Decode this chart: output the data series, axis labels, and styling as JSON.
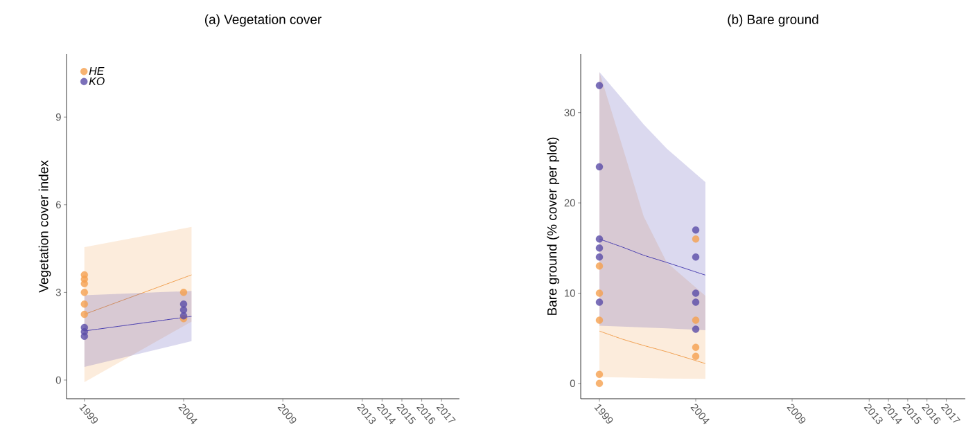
{
  "chart_data": [
    {
      "type": "scatter",
      "title": "(a) Vegetation cover",
      "ylabel": "Vegetation cover index",
      "xlim": [
        1998.1,
        2017.9
      ],
      "xticks": [
        1999,
        2004,
        2009,
        2013,
        2014,
        2015,
        2016,
        2017
      ],
      "ylim": [
        -0.64,
        11.16
      ],
      "yticks": [
        0,
        3,
        6,
        9
      ],
      "grid": false,
      "legend": "top left",
      "series": [
        {
          "type": "line",
          "marker": "none",
          "color": "#f0a050",
          "x": [
            1999,
            2004.4
          ],
          "values": [
            2.25,
            3.6
          ],
          "lower": [
            -0.07,
            2.0
          ],
          "upper": [
            4.55,
            5.24
          ]
        },
        {
          "type": "line",
          "marker": "none",
          "color": "#4a3fb0",
          "x": [
            1999,
            2004.4
          ],
          "values": [
            1.68,
            2.18
          ],
          "lower": [
            0.45,
            1.33
          ],
          "upper": [
            2.9,
            3.05
          ]
        },
        {
          "name": "HE",
          "marker": "circle",
          "color": "#f5a04f",
          "x": [
            1999,
            1999,
            1999,
            1999,
            1999,
            1999,
            2004,
            2004
          ],
          "values": [
            3.6,
            3.45,
            3.3,
            3.0,
            2.6,
            2.25,
            3.0,
            2.1
          ]
        },
        {
          "name": "KO",
          "marker": "circle",
          "color": "#5a4ca8",
          "x": [
            1999,
            1999,
            1999,
            2004,
            2004,
            2004
          ],
          "values": [
            1.8,
            1.65,
            1.5,
            2.6,
            2.4,
            2.2
          ]
        }
      ]
    },
    {
      "type": "scatter",
      "title": "(b) Bare ground",
      "ylabel": "Bare ground (% cover per plot)",
      "xlim": [
        1998.03,
        2017.99
      ],
      "xticks": [
        1999,
        2004,
        2009,
        2013,
        2014,
        2015,
        2016,
        2017
      ],
      "ylim": [
        -1.7,
        36.5
      ],
      "yticks": [
        0,
        10,
        20,
        30
      ],
      "grid": false,
      "legend": false,
      "series": [
        {
          "type": "line",
          "marker": "none",
          "color": "#f0a050",
          "x": [
            1999,
            2000.2,
            2001.3,
            2002.5,
            2004.5
          ],
          "values": [
            5.8,
            4.9,
            4.2,
            3.5,
            2.2
          ],
          "lower": [
            0.7,
            0.65,
            0.6,
            0.55,
            0.5
          ],
          "upper": [
            34.5,
            26.2,
            18.5,
            13.4,
            9.7
          ]
        },
        {
          "type": "line",
          "marker": "none",
          "color": "#4a3fb0",
          "x": [
            1999,
            2000.2,
            2001.3,
            2002.5,
            2004.5
          ],
          "values": [
            16,
            15.1,
            14.2,
            13.4,
            12
          ],
          "lower": [
            6.4,
            6.3,
            6.2,
            6.1,
            5.9
          ],
          "upper": [
            34.5,
            31.5,
            28.7,
            26,
            22.3
          ]
        },
        {
          "marker": "circle",
          "color": "#f5a04f",
          "x": [
            1999,
            1999,
            1999,
            1999,
            1999,
            2004,
            2004,
            2004,
            2004
          ],
          "values": [
            13,
            10,
            7,
            1,
            0,
            16,
            7,
            4,
            3
          ]
        },
        {
          "marker": "circle",
          "color": "#5a4ca8",
          "x": [
            1999,
            1999,
            1999,
            1999,
            1999,
            1999,
            2004,
            2004,
            2004,
            2004,
            2004
          ],
          "values": [
            33,
            24,
            16,
            15,
            14,
            9,
            17,
            14,
            10,
            9,
            6
          ]
        }
      ]
    }
  ]
}
